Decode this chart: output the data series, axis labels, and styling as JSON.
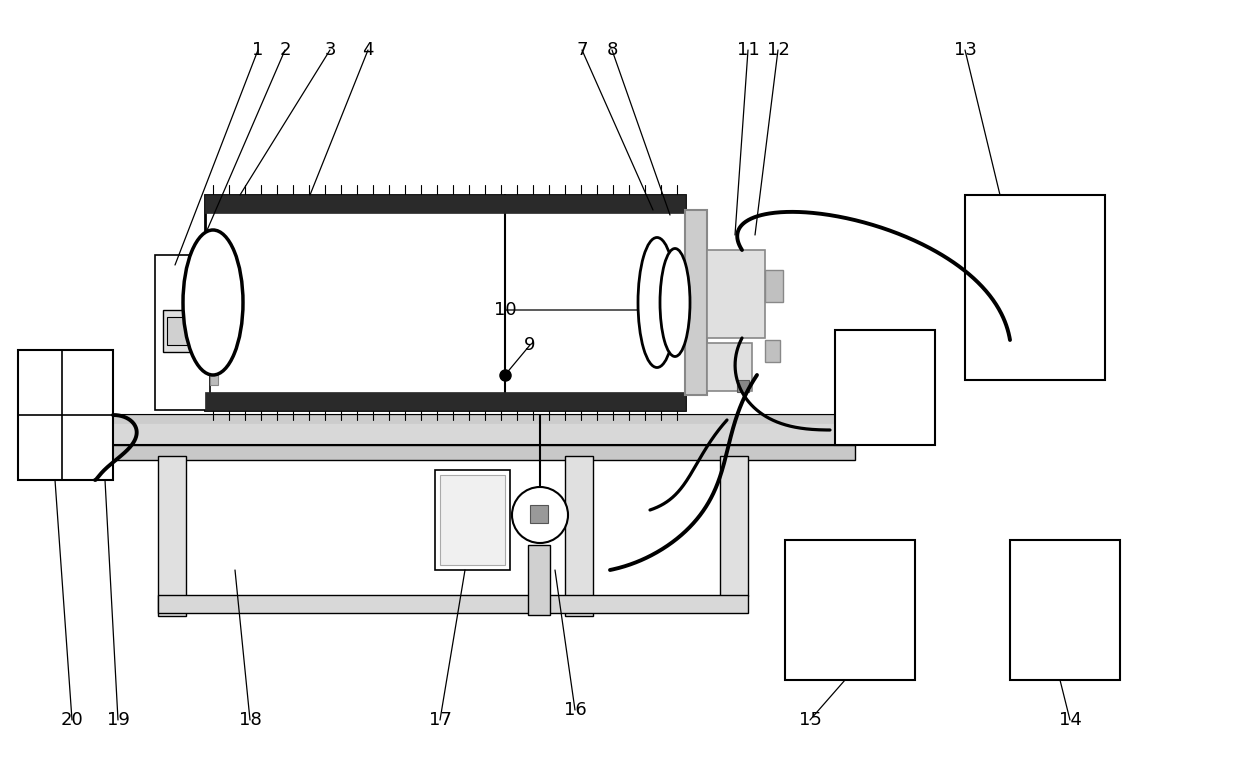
{
  "bg_color": "#ffffff",
  "lc": "#000000",
  "lw": 1.2,
  "tlw": 2.8,
  "figsize": [
    12.39,
    7.77
  ],
  "dpi": 100
}
